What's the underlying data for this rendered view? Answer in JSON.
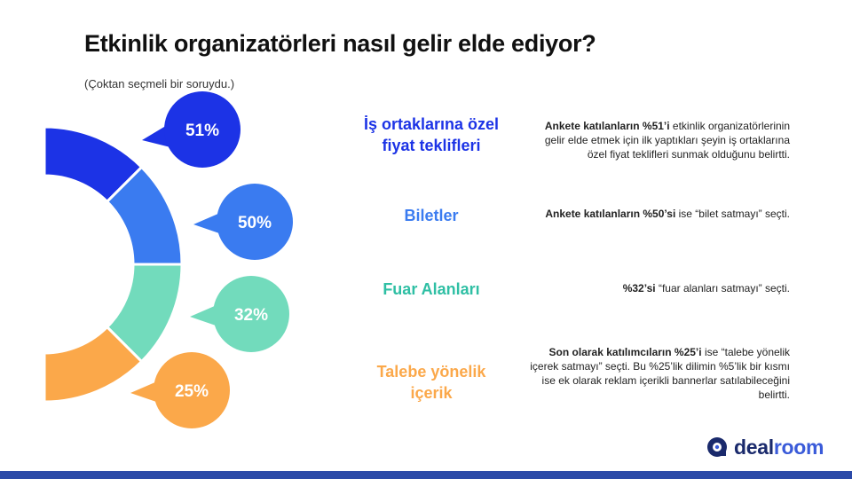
{
  "title": "Etkinlik organizatörleri nasıl gelir elde ediyor?",
  "subtitle": "(Çoktan seçmeli bir soruydu.)",
  "colors": {
    "blue_dark": "#1c33e6",
    "blue_mid": "#3a7bf0",
    "teal": "#72dbbc",
    "orange": "#fba84a"
  },
  "chart_data": {
    "type": "pie",
    "series": [
      {
        "label": "51%",
        "value": 51,
        "color": "#1c33e6"
      },
      {
        "label": "50%",
        "value": 50,
        "color": "#3a7bf0"
      },
      {
        "label": "32%",
        "value": 32,
        "color": "#72dbbc"
      },
      {
        "label": "25%",
        "value": 25,
        "color": "#fba84a"
      }
    ]
  },
  "items": [
    {
      "category": [
        "İş ortaklarına özel",
        "fiyat teklifleri"
      ],
      "bold": "Ankete katılanların %51’i",
      "rest": " etkinlik organizatörlerinin gelir elde etmek için ilk yaptıkları şeyin iş ortaklarına özel fiyat teklifleri sunmak olduğunu belirtti.",
      "color": "#1c33e6"
    },
    {
      "category": [
        "Biletler"
      ],
      "bold": "Ankete katılanların %50’si",
      "rest": " ise “bilet satmayı” seçti.",
      "color": "#3a7bf0"
    },
    {
      "category": [
        "Fuar Alanları"
      ],
      "bold": "%32’si",
      "rest": " “fuar alanları satmayı” seçti.",
      "color": "#2fbfa4"
    },
    {
      "category": [
        "Talebe yönelik",
        "içerik"
      ],
      "bold": "Son olarak katılımcıların %25’i",
      "rest": " ise “talebe yönelik içerek satmayı” seçti. Bu %25’lik dilimin %5’lik bir kısmı ise ek olarak reklam içerikli bannerlar satılabileceğini belirtti.",
      "color": "#fba84a"
    }
  ],
  "logo": {
    "part1": "deal",
    "part2": "room",
    "icon": "dealroom-logo-icon"
  }
}
